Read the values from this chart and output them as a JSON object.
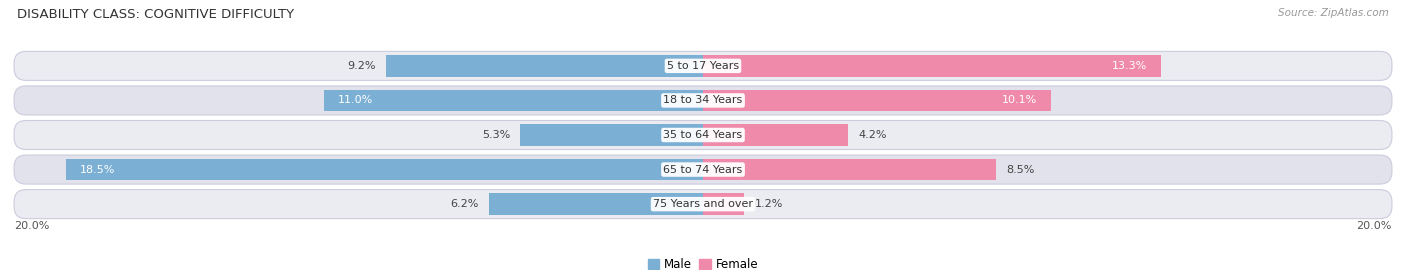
{
  "title": "DISABILITY CLASS: COGNITIVE DIFFICULTY",
  "source": "Source: ZipAtlas.com",
  "categories": [
    "5 to 17 Years",
    "18 to 34 Years",
    "35 to 64 Years",
    "65 to 74 Years",
    "75 Years and over"
  ],
  "male_values": [
    9.2,
    11.0,
    5.3,
    18.5,
    6.2
  ],
  "female_values": [
    13.3,
    10.1,
    4.2,
    8.5,
    1.2
  ],
  "male_color": "#7bafd4",
  "female_color": "#f08aab",
  "male_color_light": "#aecce8",
  "female_color_light": "#f5b8ce",
  "row_bg_odd": "#ebebf2",
  "row_bg_even": "#e2e2ec",
  "max_value": 20.0,
  "title_fontsize": 9.5,
  "bar_height": 0.62,
  "label_fontsize": 8.0,
  "category_fontsize": 8.0,
  "source_fontsize": 7.5
}
